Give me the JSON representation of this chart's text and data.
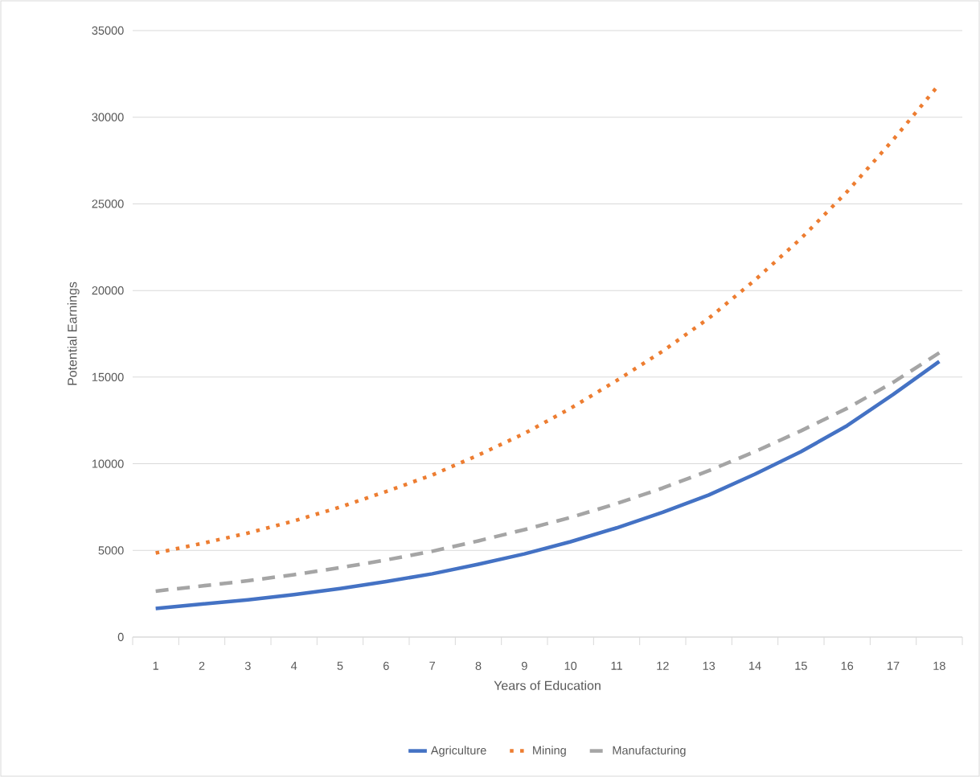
{
  "chart_data": {
    "type": "line",
    "xlabel": "Years of Education",
    "ylabel": "Potential Earnings",
    "categories": [
      "1",
      "2",
      "3",
      "4",
      "5",
      "6",
      "7",
      "8",
      "9",
      "10",
      "11",
      "12",
      "13",
      "14",
      "15",
      "16",
      "17",
      "18"
    ],
    "series": [
      {
        "name": "Agriculture",
        "color": "#4472c4",
        "line_style": "solid",
        "values": [
          1650,
          1900,
          2150,
          2450,
          2800,
          3200,
          3650,
          4200,
          4800,
          5500,
          6300,
          7200,
          8200,
          9400,
          10700,
          12200,
          14000,
          15900
        ]
      },
      {
        "name": "Mining",
        "color": "#ed7d31",
        "line_style": "dotted",
        "values": [
          4850,
          5400,
          6000,
          6700,
          7500,
          8400,
          9350,
          10500,
          11750,
          13200,
          14800,
          16500,
          18400,
          20600,
          23000,
          25700,
          28700,
          31900
        ]
      },
      {
        "name": "Manufacturing",
        "color": "#a5a5a5",
        "line_style": "dashed",
        "values": [
          2650,
          2950,
          3250,
          3600,
          4000,
          4450,
          4950,
          5550,
          6200,
          6900,
          7700,
          8600,
          9600,
          10700,
          11900,
          13200,
          14700,
          16400
        ]
      }
    ],
    "ylim": [
      0,
      35000
    ],
    "yticks": [
      0,
      5000,
      10000,
      15000,
      20000,
      25000,
      30000,
      35000
    ],
    "grid": "y",
    "legend": "bottom",
    "marker": "none"
  }
}
